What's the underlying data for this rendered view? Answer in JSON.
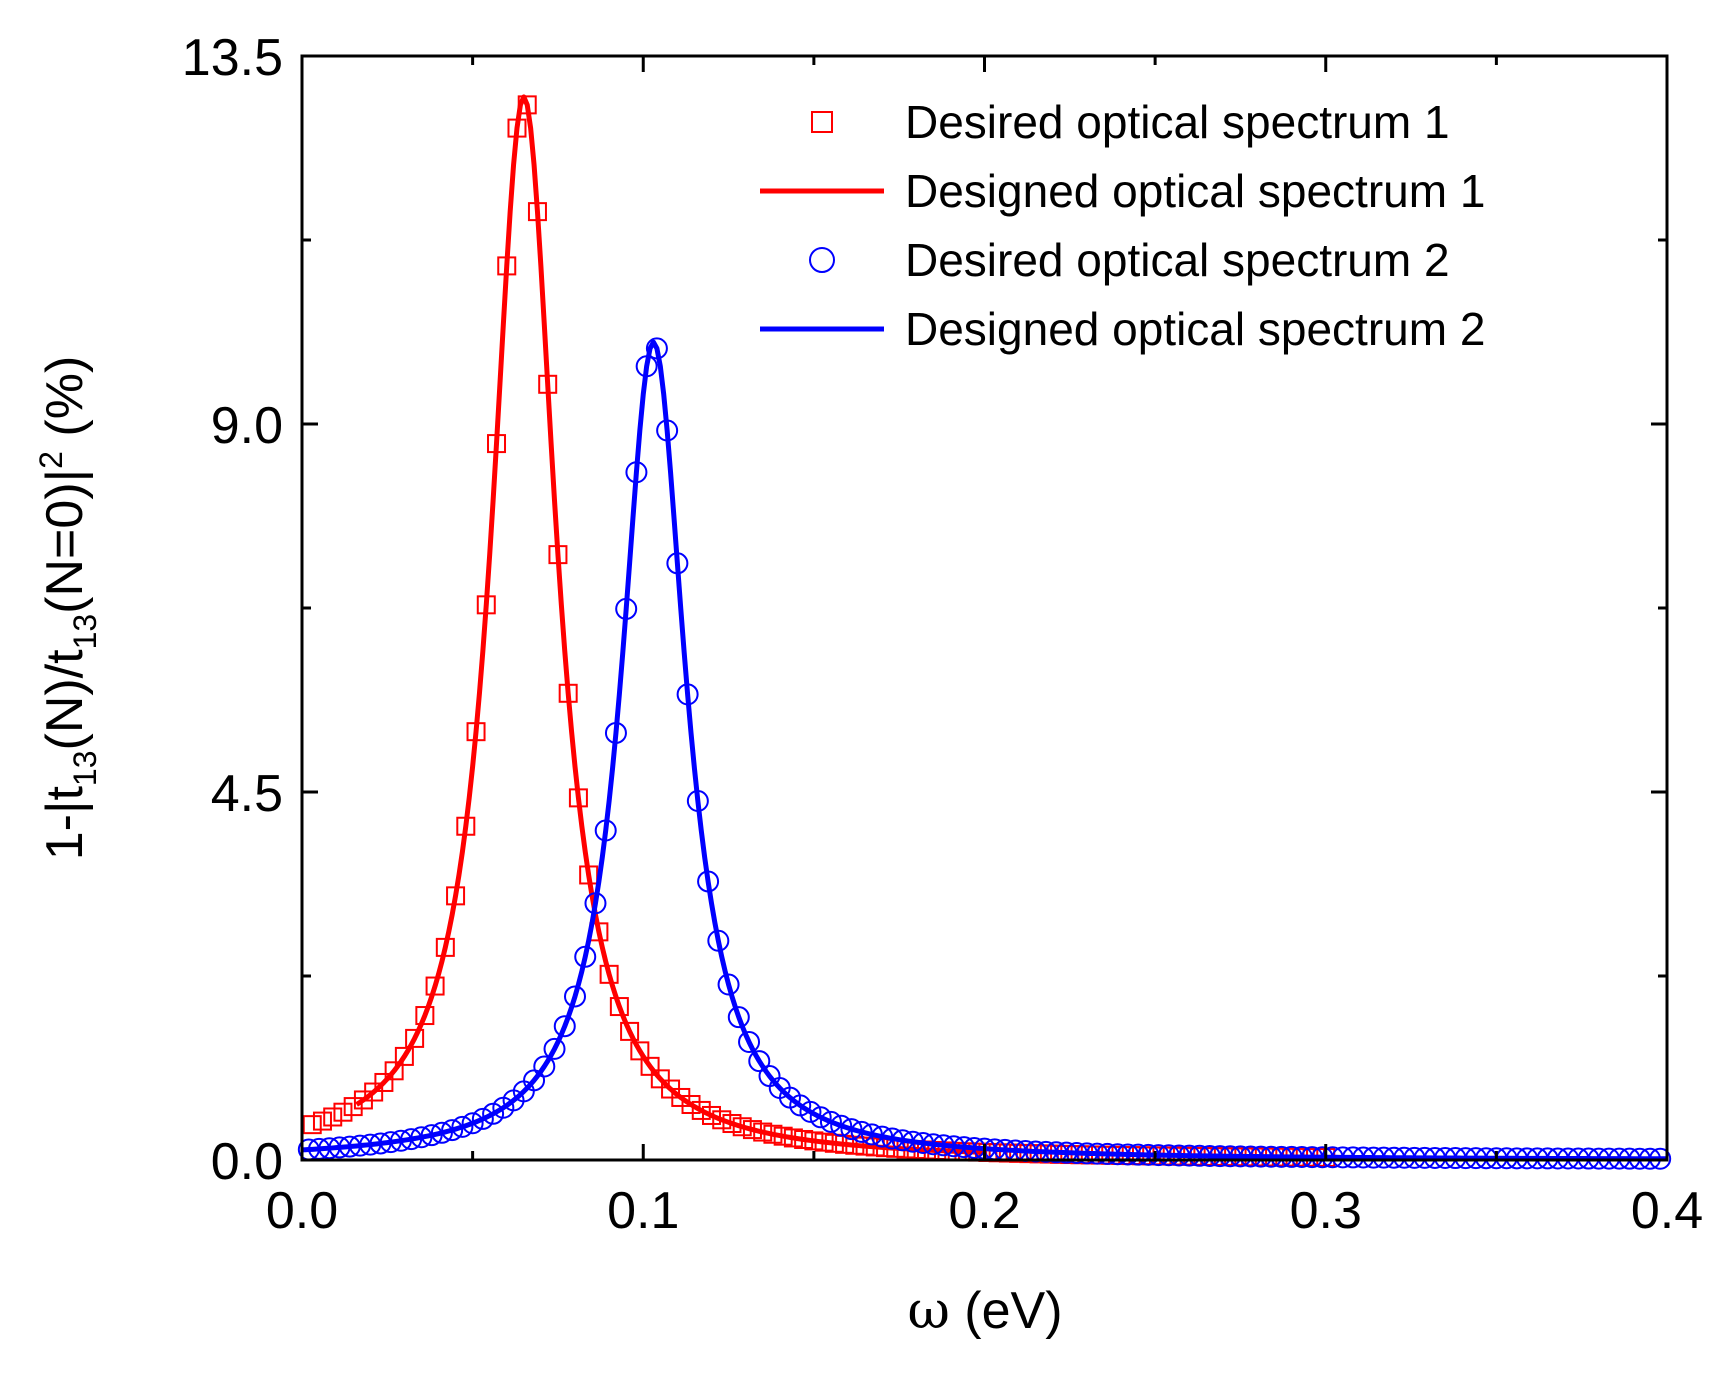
{
  "chart_data": {
    "type": "line",
    "title": "",
    "xlabel": {
      "symbol": "ω",
      "unit": " (eV)"
    },
    "ylabel": {
      "p1": "1-|t",
      "s1": "13",
      "p2": "(N)/t",
      "s2": "13",
      "p3": "(N=0)|",
      "sup": "2",
      "p4": " (%)"
    },
    "xlim": [
      0.0,
      0.4
    ],
    "ylim": [
      0.0,
      13.5
    ],
    "xticks": [
      "0.0",
      "0.1",
      "0.2",
      "0.3",
      "0.4"
    ],
    "yticks": [
      "0.0",
      "4.5",
      "9.0",
      "13.5"
    ],
    "legend_position": "top-right",
    "series": [
      {
        "name": "Desired optical spectrum 1",
        "style": "open-square",
        "color": "#ff0000",
        "center": 0.065,
        "width": 0.0115,
        "peak": 13.0,
        "x_start": 0.003,
        "x_end": 0.3,
        "x_step": 0.003
      },
      {
        "name": "Designed optical spectrum 1",
        "style": "line",
        "color": "#ff0000",
        "center": 0.065,
        "width": 0.0115,
        "peak": 13.0,
        "x_start": 0.016,
        "x_end": 0.2,
        "x_step": 0.001
      },
      {
        "name": "Desired optical spectrum 2",
        "style": "open-circle",
        "color": "#0000ff",
        "center": 0.103,
        "width": 0.0115,
        "peak": 10.0,
        "x_start": 0.002,
        "x_end": 0.4,
        "x_step": 0.003
      },
      {
        "name": "Designed optical spectrum 2",
        "style": "line",
        "color": "#0000ff",
        "center": 0.103,
        "width": 0.0115,
        "peak": 10.0,
        "x_start": 0.0,
        "x_end": 0.4,
        "x_step": 0.001
      }
    ]
  }
}
